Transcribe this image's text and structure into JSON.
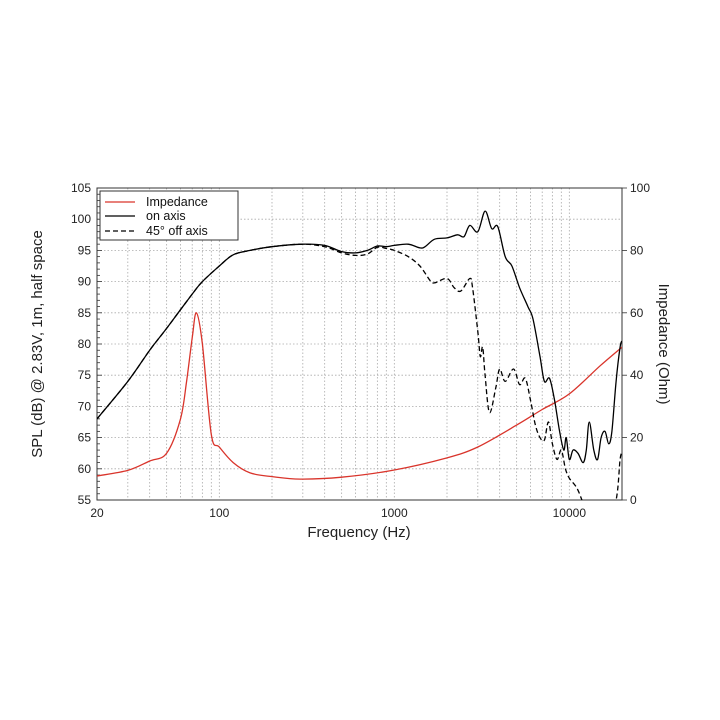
{
  "chart_data": {
    "type": "line",
    "xscale": "log",
    "xlim": [
      20,
      20000
    ],
    "ylim": [
      55,
      105
    ],
    "y2lim": [
      0,
      100
    ],
    "xlabel": "Frequency (Hz)",
    "ylabel": "SPL (dB) @ 2.83V, 1m, half space",
    "y2label": "Impedance (Ohm)",
    "xticks": [
      20,
      100,
      1000,
      10000
    ],
    "yticks": [
      55,
      60,
      65,
      70,
      75,
      80,
      85,
      90,
      95,
      100,
      105
    ],
    "y2ticks": [
      0,
      20,
      40,
      60,
      80,
      100
    ],
    "grid": true,
    "legend_position": "top-left",
    "series": [
      {
        "name": "Impedance",
        "axis": "right",
        "color": "#d9342b",
        "style": "solid",
        "x": [
          20,
          30,
          40,
          50,
          60,
          65,
          70,
          74,
          80,
          90,
          100,
          120,
          150,
          200,
          290,
          500,
          1000,
          2000,
          3000,
          5000,
          7000,
          10000,
          15000,
          20000
        ],
        "y": [
          7.7,
          9.5,
          12.5,
          15,
          26,
          38,
          52,
          60,
          50,
          21,
          17,
          12,
          8.7,
          7.5,
          6.7,
          7.3,
          9.6,
          13.5,
          17,
          24,
          29,
          34,
          43,
          49
        ]
      },
      {
        "name": "on axis",
        "axis": "left",
        "color": "#000000",
        "style": "solid",
        "x": [
          20,
          30,
          40,
          50,
          60,
          70,
          80,
          100,
          120,
          150,
          200,
          300,
          400,
          500,
          600,
          700,
          800,
          900,
          1000,
          1200,
          1400,
          1500,
          1700,
          2000,
          2300,
          2500,
          2700,
          3000,
          3300,
          3600,
          3900,
          4300,
          4700,
          5200,
          5800,
          6200,
          6800,
          7200,
          7700,
          8200,
          8800,
          9300,
          9600,
          10000,
          10500,
          11200,
          12000,
          12500,
          13000,
          13800,
          14500,
          15200,
          16000,
          16800,
          17500,
          18500,
          19500,
          20000
        ],
        "y": [
          68,
          74,
          79,
          82.5,
          85.5,
          88,
          90,
          92.5,
          94.3,
          95,
          95.6,
          96,
          95.8,
          94.8,
          94.6,
          95,
          95.7,
          95.6,
          95.8,
          96,
          95.4,
          95.6,
          96.8,
          97,
          97.5,
          97.2,
          99,
          98,
          101.3,
          98.5,
          98.8,
          94,
          92.5,
          89,
          86,
          84,
          78,
          74,
          74.5,
          71.3,
          66,
          63,
          65,
          61.5,
          63,
          62.5,
          61,
          63,
          67.5,
          63,
          61.5,
          65,
          66,
          64,
          66,
          74,
          79.5,
          80.5
        ]
      },
      {
        "name": "45° off axis",
        "axis": "left",
        "color": "#000000",
        "style": "dashed",
        "x": [
          20,
          30,
          40,
          50,
          60,
          70,
          80,
          100,
          120,
          150,
          200,
          300,
          400,
          500,
          600,
          700,
          800,
          900,
          1000,
          1200,
          1400,
          1600,
          1700,
          2000,
          2200,
          2400,
          2700,
          2800,
          3000,
          3100,
          3200,
          3300,
          3500,
          3800,
          4000,
          4300,
          4800,
          5200,
          5600,
          6000,
          6400,
          6800,
          7200,
          7600,
          8000,
          8500,
          9000,
          9500,
          10000,
          11000,
          11800,
          12500,
          16000,
          18500,
          19500,
          20000
        ],
        "y": [
          68,
          74,
          79,
          82.5,
          85.5,
          88,
          90,
          92.5,
          94.3,
          95,
          95.6,
          96,
          95.6,
          94.6,
          94.2,
          94.4,
          95.5,
          95.3,
          95,
          94,
          92.5,
          90.2,
          89.8,
          90.5,
          89,
          88.5,
          90.5,
          89,
          82,
          78,
          79.5,
          75,
          69,
          73,
          76,
          74,
          76,
          73.5,
          74.5,
          71,
          67,
          65,
          64.6,
          67.5,
          64,
          61.5,
          63,
          60,
          58.5,
          57,
          55,
          53,
          50,
          55,
          61.5,
          62.5
        ]
      }
    ]
  }
}
